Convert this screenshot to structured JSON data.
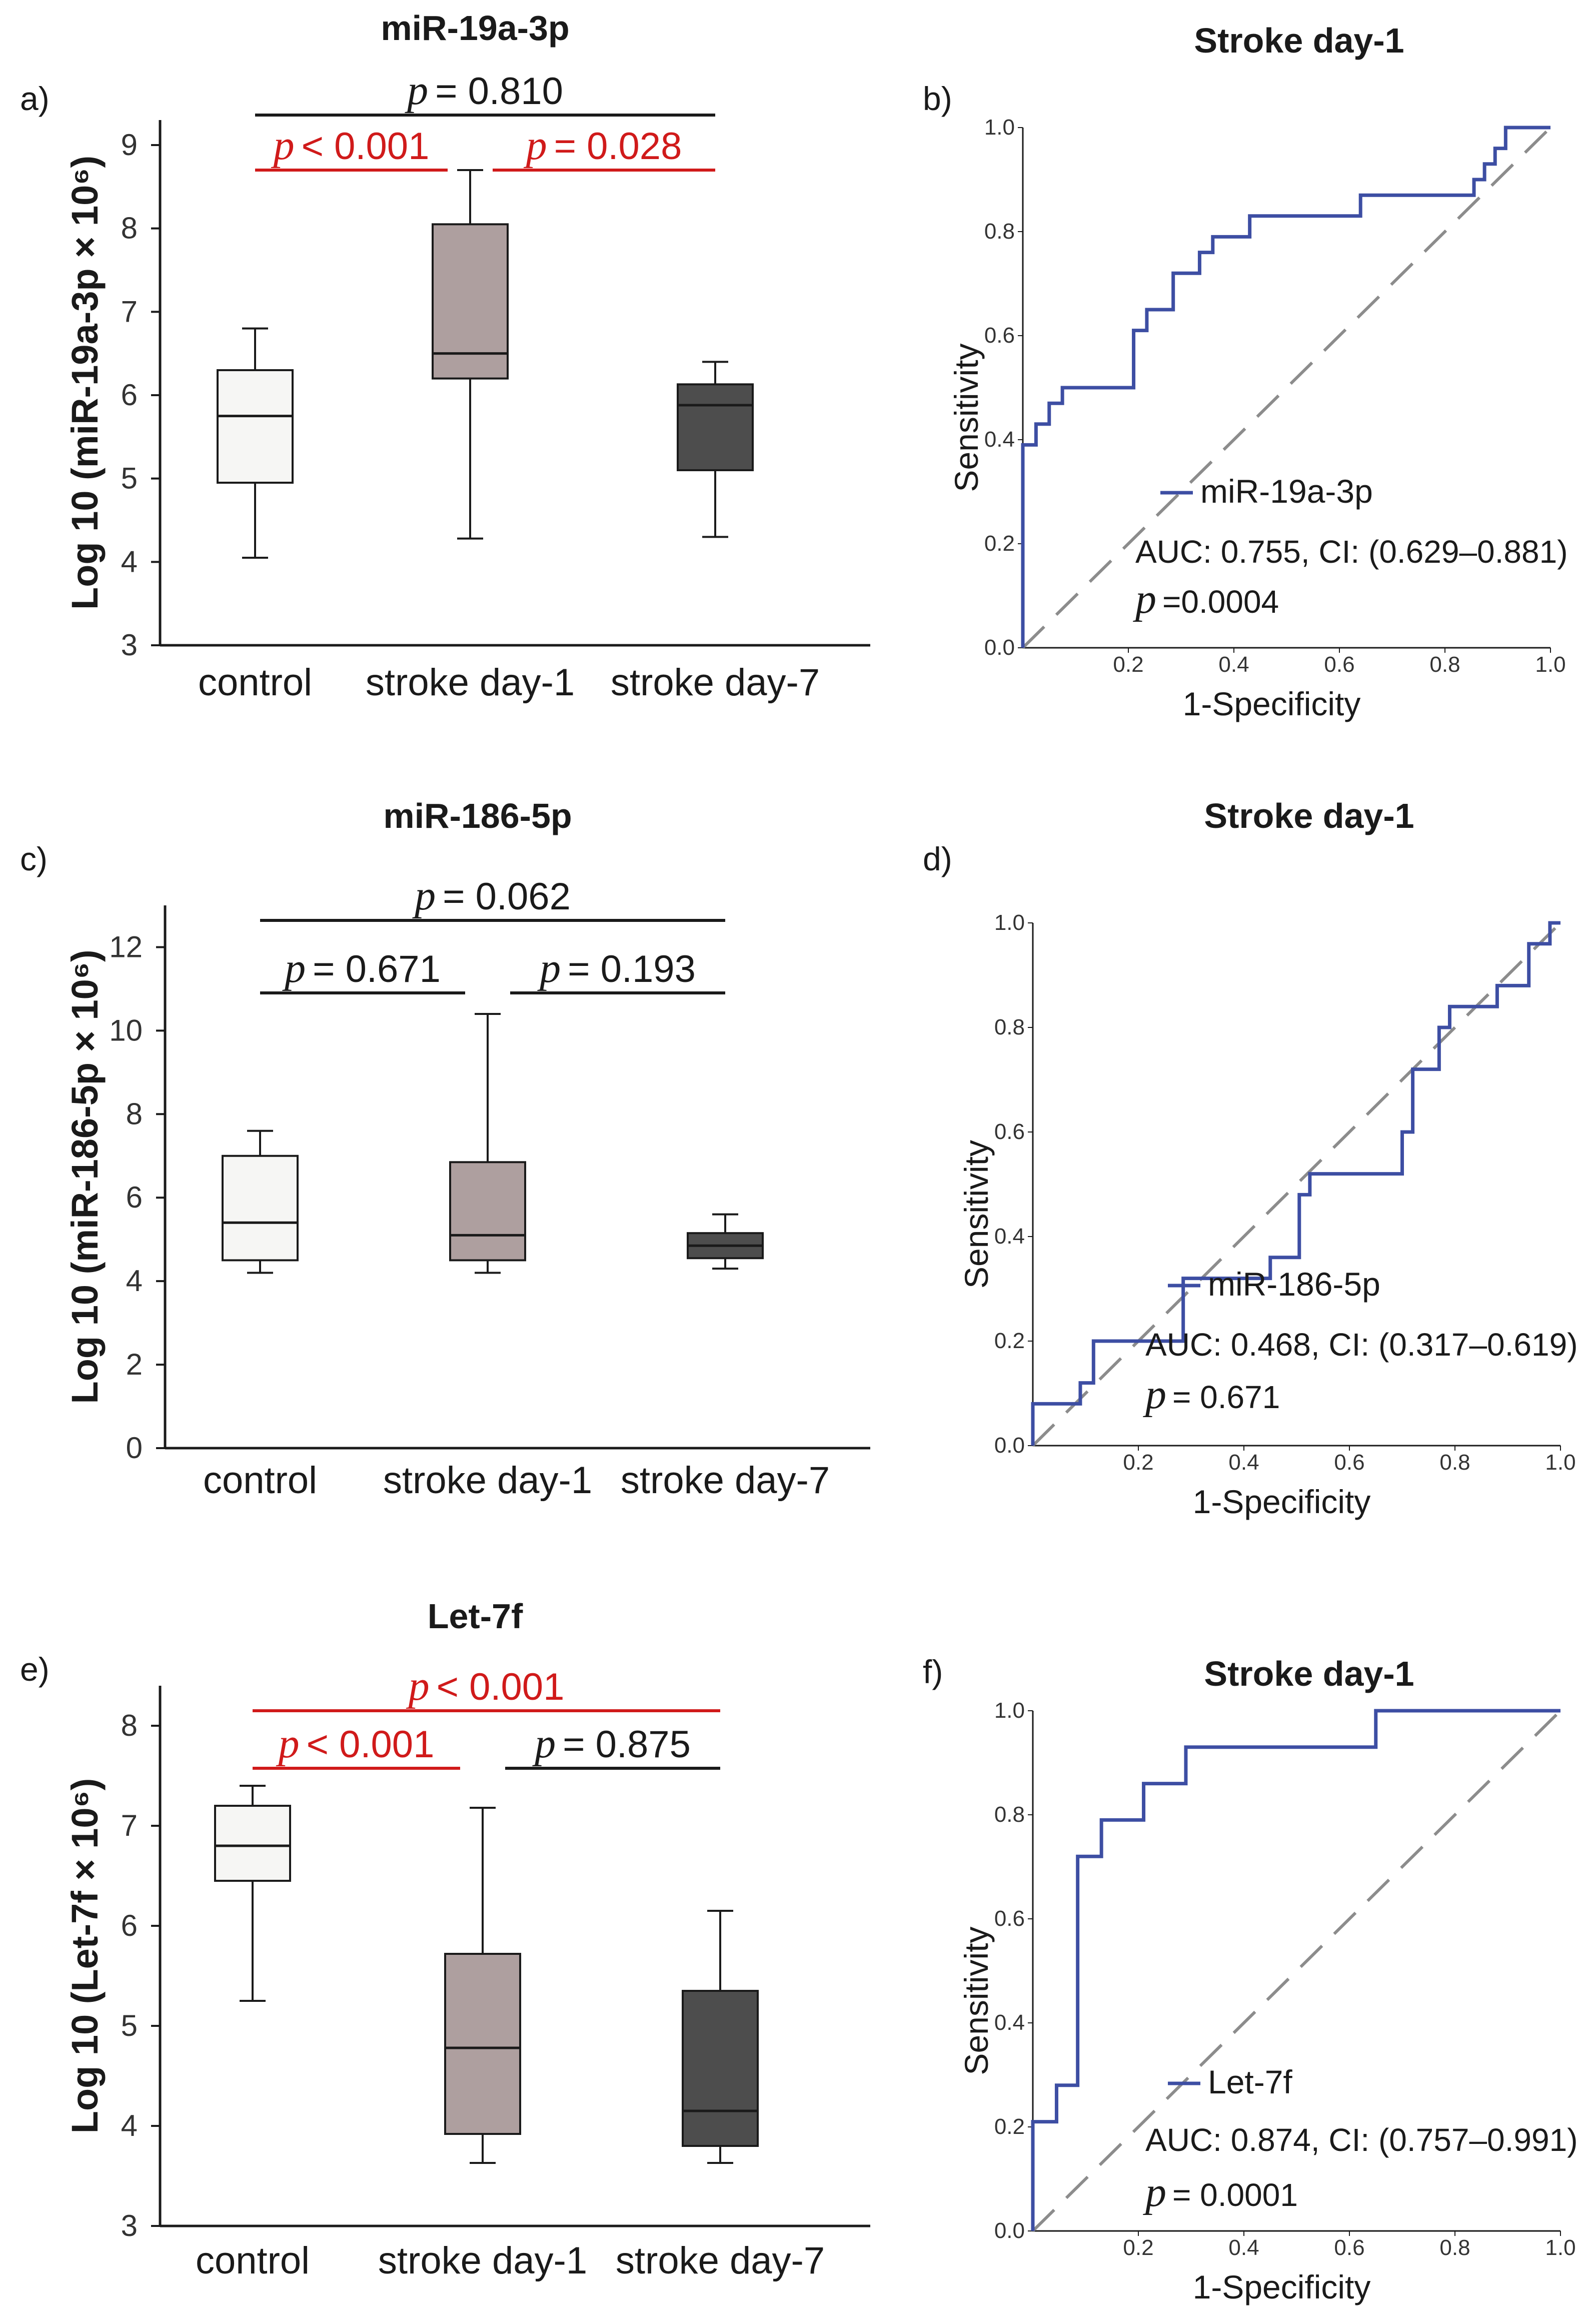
{
  "colors": {
    "control_fill": "#f6f6f4",
    "day1_fill": "#ae9f9f",
    "day7_fill": "#4d4d4d",
    "red": "#d01a1a",
    "black": "#1a1a1a",
    "roc_line": "#3d4ea3",
    "diag": "#8c8c8c"
  },
  "chart_data": [
    {
      "id": "a",
      "type": "box",
      "panel_label": "a)",
      "title": "miR-19a-3p",
      "ylabel": "Log 10 (miR-19a-3p × 10⁶)",
      "ylim": [
        3,
        9.3
      ],
      "yticks": [
        "3",
        "4",
        "5",
        "6",
        "7",
        "8",
        "9"
      ],
      "categories": [
        "control",
        "stroke day-1",
        "stroke day-7"
      ],
      "boxes": [
        {
          "min": 4.05,
          "q1": 4.95,
          "median": 5.75,
          "q3": 6.3,
          "max": 6.8
        },
        {
          "min": 4.28,
          "q1": 6.2,
          "median": 6.5,
          "q3": 8.05,
          "max": 8.7
        },
        {
          "min": 4.3,
          "q1": 5.1,
          "median": 5.88,
          "q3": 6.13,
          "max": 6.4
        }
      ],
      "comparisons": [
        {
          "from": 0,
          "to": 2,
          "level": 2,
          "p_symbol": "p",
          "p_text": "= 0.810",
          "color": "black"
        },
        {
          "from": 0,
          "to": 1,
          "level": 1,
          "p_symbol": "p",
          "p_text": "< 0.001",
          "color": "red"
        },
        {
          "from": 1,
          "to": 2,
          "level": 1,
          "p_symbol": "p",
          "p_text": "= 0.028",
          "color": "red"
        }
      ]
    },
    {
      "id": "b",
      "type": "line",
      "panel_label": "b)",
      "title": "Stroke day-1",
      "xlabel": "1-Specificity",
      "ylabel": "Sensitivity",
      "xticks": [
        "0.2",
        "0.4",
        "0.6",
        "0.8",
        "1.0"
      ],
      "yticks": [
        "0.0",
        "0.2",
        "0.4",
        "0.6",
        "0.8",
        "1.0"
      ],
      "legend": "miR-19a-3p",
      "auc_text": "AUC: 0.755, CI: (0.629–0.881)",
      "p_symbol": "p",
      "p_text": "=0.0004",
      "roc": [
        [
          0,
          0
        ],
        [
          0,
          0.39
        ],
        [
          0.025,
          0.39
        ],
        [
          0.025,
          0.43
        ],
        [
          0.05,
          0.43
        ],
        [
          0.05,
          0.47
        ],
        [
          0.075,
          0.47
        ],
        [
          0.075,
          0.5
        ],
        [
          0.21,
          0.5
        ],
        [
          0.21,
          0.61
        ],
        [
          0.235,
          0.61
        ],
        [
          0.235,
          0.65
        ],
        [
          0.285,
          0.65
        ],
        [
          0.285,
          0.72
        ],
        [
          0.335,
          0.72
        ],
        [
          0.335,
          0.76
        ],
        [
          0.36,
          0.76
        ],
        [
          0.36,
          0.79
        ],
        [
          0.43,
          0.79
        ],
        [
          0.43,
          0.83
        ],
        [
          0.64,
          0.83
        ],
        [
          0.64,
          0.87
        ],
        [
          0.855,
          0.87
        ],
        [
          0.855,
          0.9
        ],
        [
          0.875,
          0.9
        ],
        [
          0.875,
          0.93
        ],
        [
          0.895,
          0.93
        ],
        [
          0.895,
          0.96
        ],
        [
          0.915,
          0.96
        ],
        [
          0.915,
          1.0
        ],
        [
          1.0,
          1.0
        ]
      ]
    },
    {
      "id": "c",
      "type": "box",
      "panel_label": "c)",
      "title": "miR-186-5p",
      "ylabel": "Log 10 (miR-186-5p × 10⁶)",
      "ylim": [
        0,
        13
      ],
      "yticks": [
        "0",
        "2",
        "4",
        "6",
        "8",
        "10",
        "12"
      ],
      "categories": [
        "control",
        "stroke day-1",
        "stroke day-7"
      ],
      "boxes": [
        {
          "min": 4.2,
          "q1": 4.5,
          "median": 5.4,
          "q3": 7.0,
          "max": 7.6
        },
        {
          "min": 4.2,
          "q1": 4.5,
          "median": 5.1,
          "q3": 6.85,
          "max": 10.4
        },
        {
          "min": 4.3,
          "q1": 4.55,
          "median": 4.85,
          "q3": 5.15,
          "max": 5.6
        }
      ],
      "comparisons": [
        {
          "from": 0,
          "to": 2,
          "level": 2,
          "p_symbol": "p",
          "p_text": "= 0.062",
          "color": "black"
        },
        {
          "from": 0,
          "to": 1,
          "level": 1,
          "p_symbol": "p",
          "p_text": "= 0.671",
          "color": "black"
        },
        {
          "from": 1,
          "to": 2,
          "level": 1,
          "p_symbol": "p",
          "p_text": "= 0.193",
          "color": "black"
        }
      ]
    },
    {
      "id": "d",
      "type": "line",
      "panel_label": "d)",
      "title": "Stroke day-1",
      "xlabel": "1-Specificity",
      "ylabel": "Sensitivity",
      "xticks": [
        "0.2",
        "0.4",
        "0.6",
        "0.8",
        "1.0"
      ],
      "yticks": [
        "0.0",
        "0.2",
        "0.4",
        "0.6",
        "0.8",
        "1.0"
      ],
      "legend": "miR-186-5p",
      "auc_text": "AUC: 0.468, CI: (0.317–0.619)",
      "p_symbol": "p",
      "p_text": "= 0.671",
      "roc": [
        [
          0,
          0
        ],
        [
          0,
          0.08
        ],
        [
          0.09,
          0.08
        ],
        [
          0.09,
          0.12
        ],
        [
          0.115,
          0.12
        ],
        [
          0.115,
          0.2
        ],
        [
          0.285,
          0.2
        ],
        [
          0.285,
          0.32
        ],
        [
          0.45,
          0.32
        ],
        [
          0.45,
          0.36
        ],
        [
          0.505,
          0.36
        ],
        [
          0.505,
          0.48
        ],
        [
          0.525,
          0.48
        ],
        [
          0.525,
          0.52
        ],
        [
          0.7,
          0.52
        ],
        [
          0.7,
          0.6
        ],
        [
          0.72,
          0.6
        ],
        [
          0.72,
          0.72
        ],
        [
          0.77,
          0.72
        ],
        [
          0.77,
          0.8
        ],
        [
          0.79,
          0.8
        ],
        [
          0.79,
          0.84
        ],
        [
          0.88,
          0.84
        ],
        [
          0.88,
          0.88
        ],
        [
          0.94,
          0.88
        ],
        [
          0.94,
          0.96
        ],
        [
          0.98,
          0.96
        ],
        [
          0.98,
          1.0
        ],
        [
          1.0,
          1.0
        ]
      ]
    },
    {
      "id": "e",
      "type": "box",
      "panel_label": "e)",
      "title": "Let-7f",
      "ylabel": "Log 10 (Let-7f × 10⁶)",
      "ylim": [
        3,
        8.4
      ],
      "yticks": [
        "3",
        "4",
        "5",
        "6",
        "7",
        "8"
      ],
      "categories": [
        "control",
        "stroke day-1",
        "stroke day-7"
      ],
      "boxes": [
        {
          "min": 5.25,
          "q1": 6.45,
          "median": 6.8,
          "q3": 7.2,
          "max": 7.4
        },
        {
          "min": 3.63,
          "q1": 3.92,
          "median": 4.78,
          "q3": 5.72,
          "max": 7.18
        },
        {
          "min": 3.63,
          "q1": 3.8,
          "median": 4.15,
          "q3": 5.35,
          "max": 6.15
        }
      ],
      "comparisons": [
        {
          "from": 0,
          "to": 2,
          "level": 2,
          "p_symbol": "p",
          "p_text": "< 0.001",
          "color": "red"
        },
        {
          "from": 0,
          "to": 1,
          "level": 1,
          "p_symbol": "p",
          "p_text": "< 0.001",
          "color": "red"
        },
        {
          "from": 1,
          "to": 2,
          "level": 1,
          "p_symbol": "p",
          "p_text": "= 0.875",
          "color": "black"
        }
      ]
    },
    {
      "id": "f",
      "type": "line",
      "panel_label": "f)",
      "title": "Stroke day-1",
      "xlabel": "1-Specificity",
      "ylabel": "Sensitivity",
      "xticks": [
        "0.2",
        "0.4",
        "0.6",
        "0.8",
        "1.0"
      ],
      "yticks": [
        "0.0",
        "0.2",
        "0.4",
        "0.6",
        "0.8",
        "1.0"
      ],
      "legend": "Let-7f",
      "auc_text": "AUC: 0.874, CI: (0.757–0.991)",
      "p_symbol": "p",
      "p_text": "= 0.0001",
      "roc": [
        [
          0,
          0
        ],
        [
          0,
          0.21
        ],
        [
          0.045,
          0.21
        ],
        [
          0.045,
          0.28
        ],
        [
          0.085,
          0.28
        ],
        [
          0.085,
          0.72
        ],
        [
          0.13,
          0.72
        ],
        [
          0.13,
          0.79
        ],
        [
          0.21,
          0.79
        ],
        [
          0.21,
          0.86
        ],
        [
          0.29,
          0.86
        ],
        [
          0.29,
          0.93
        ],
        [
          0.65,
          0.93
        ],
        [
          0.65,
          1.0
        ],
        [
          1.0,
          1.0
        ]
      ]
    }
  ]
}
